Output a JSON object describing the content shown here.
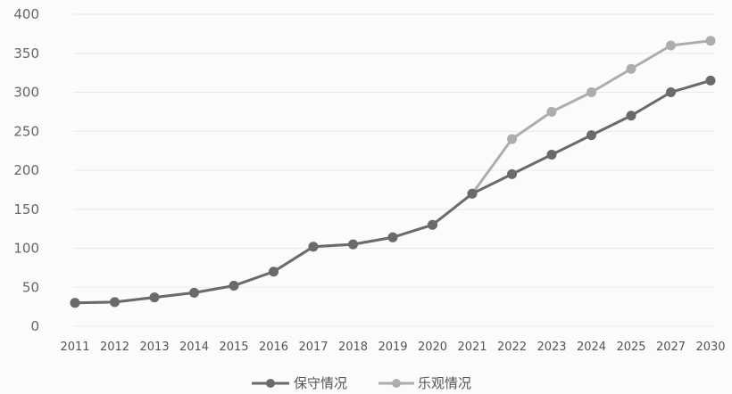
{
  "chart_data": {
    "type": "line",
    "title": "",
    "xlabel": "",
    "ylabel": "",
    "ylim": [
      0,
      400
    ],
    "yticks": [
      0,
      50,
      100,
      150,
      200,
      250,
      300,
      350,
      400
    ],
    "grid": true,
    "legend_position": "bottom-center",
    "categories": [
      "2011",
      "2012",
      "2013",
      "2014",
      "2015",
      "2016",
      "2017",
      "2018",
      "2019",
      "2020",
      "2021",
      "2022",
      "2023",
      "2024",
      "2025",
      "2027",
      "2030"
    ],
    "series": [
      {
        "name": "保守情况",
        "color": "#6a6a6a",
        "values": [
          30,
          31,
          37,
          43,
          52,
          70,
          102,
          105,
          114,
          130,
          170,
          195,
          220,
          245,
          270,
          300,
          315
        ]
      },
      {
        "name": "乐观情况",
        "color": "#adadad",
        "values": [
          30,
          31,
          37,
          43,
          52,
          70,
          102,
          105,
          114,
          130,
          170,
          240,
          275,
          300,
          330,
          360,
          366
        ]
      }
    ]
  }
}
